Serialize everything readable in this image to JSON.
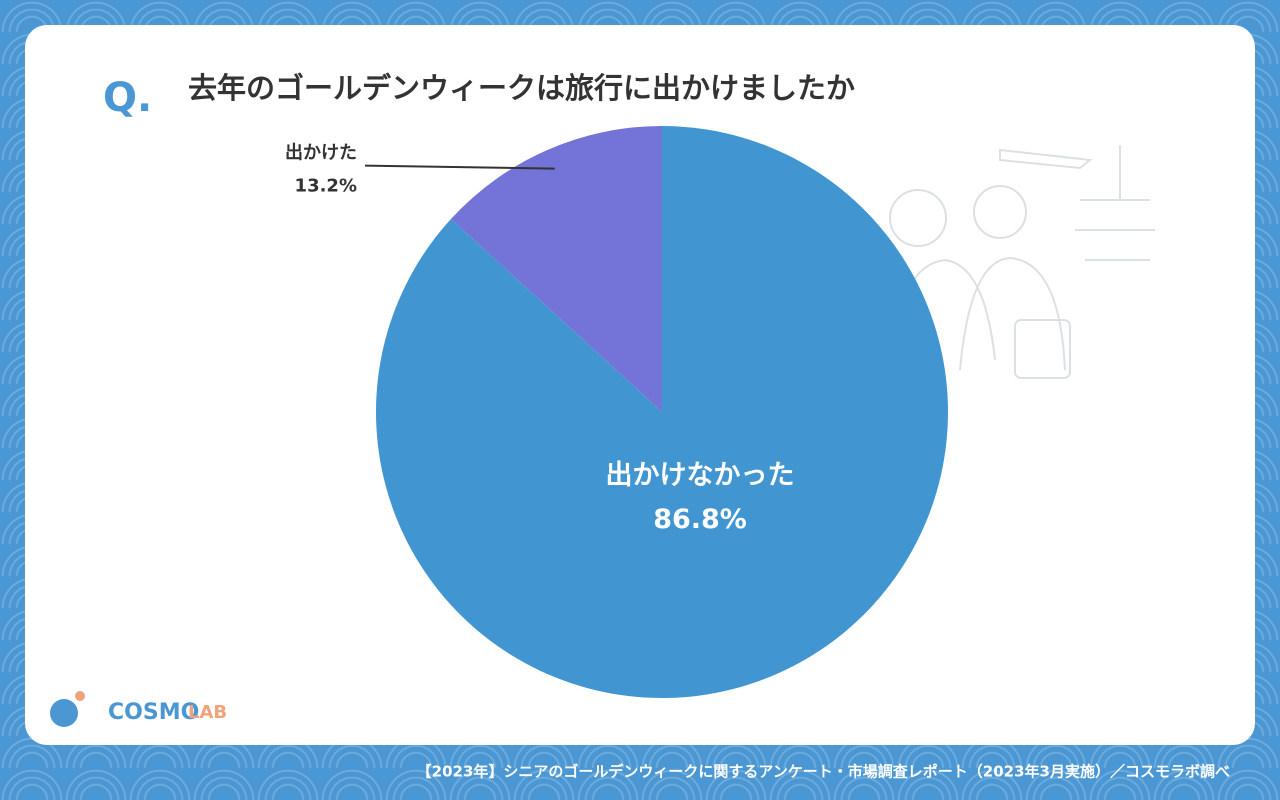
{
  "chart_data": {
    "type": "pie",
    "title": "去年のゴールデンウィークは旅行に出かけましたか",
    "categories": [
      "出かけなかった",
      "出かけた"
    ],
    "values": [
      86.8,
      13.2
    ],
    "value_labels": [
      "86.8%",
      "13.2%"
    ],
    "colors": [
      "#4196d2",
      "#7474d8"
    ]
  },
  "prefix": "Q.",
  "logo": [
    "COSMO",
    "LAB"
  ],
  "source": "【2023年】シニアのゴールデンウィークに関するアンケート・市場調査レポート（2023年3月実施）／コスモラボ調べ"
}
